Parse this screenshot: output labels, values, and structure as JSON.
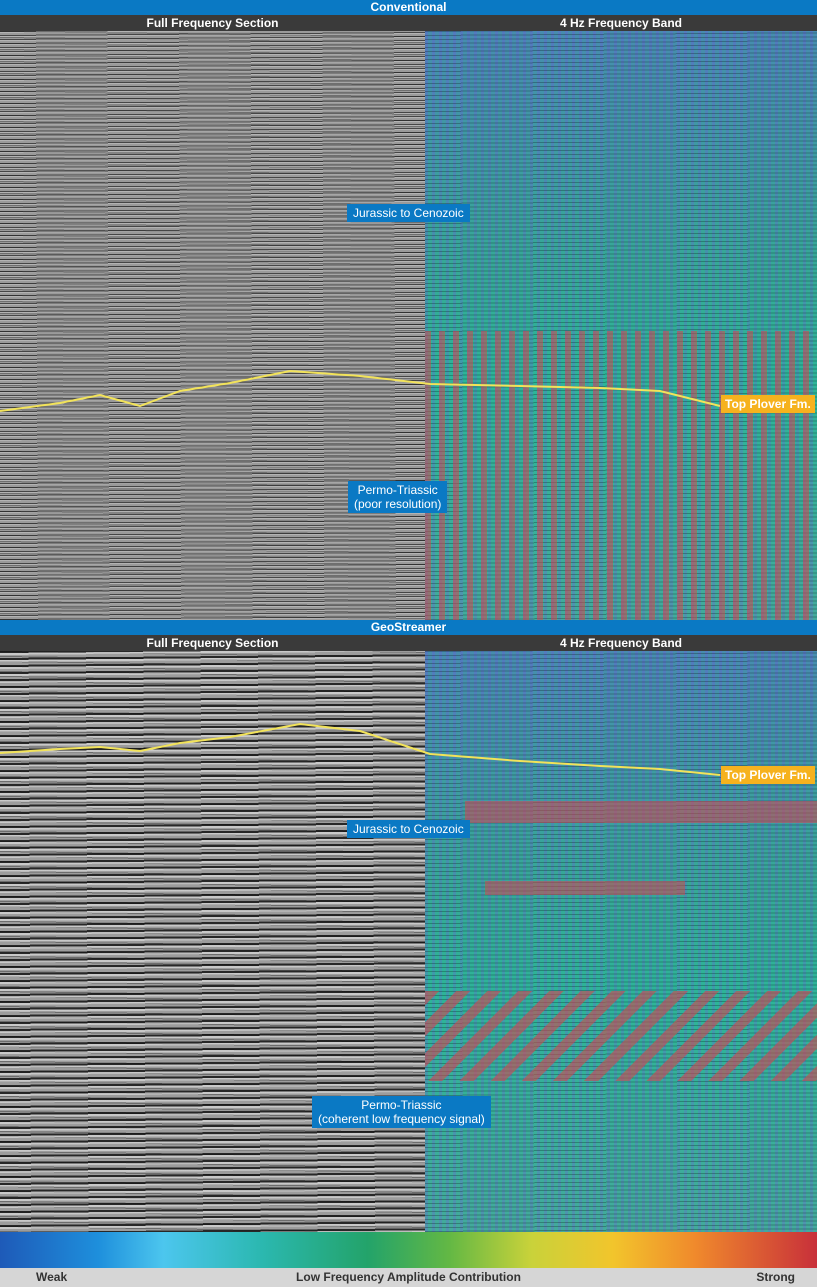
{
  "top_section": {
    "title": "Conventional",
    "left_header": "Full Frequency Section",
    "right_header": "4 Hz Frequency Band",
    "label_upper": "Jurassic to Cenozoic",
    "label_lower_line1": "Permo-Triassic",
    "label_lower_line2": "(poor resolution)",
    "horizon_tag": "Top Plover Fm."
  },
  "bottom_section": {
    "title": "GeoStreamer",
    "left_header": "Full Frequency Section",
    "right_header": "4 Hz Frequency Band",
    "label_upper": "Jurassic to Cenozoic",
    "label_lower_line1": "Permo-Triassic",
    "label_lower_line2": "(coherent low frequency signal)",
    "horizon_tag": "Top Plover Fm."
  },
  "colorbar": {
    "left_label": "Weak",
    "center_label": "Low Frequency Amplitude Contribution",
    "right_label": "Strong",
    "stops": [
      "#1e5ab8",
      "#4cc6ee",
      "#23a36a",
      "#c9d23a",
      "#f2c52c",
      "#f08a2c",
      "#c8303a"
    ]
  },
  "colors": {
    "title_bar": "#0a79c4",
    "sub_header": "#3a3a3a",
    "horizon_line": "#f2e35a",
    "horizon_tag": "#f6b21e"
  }
}
